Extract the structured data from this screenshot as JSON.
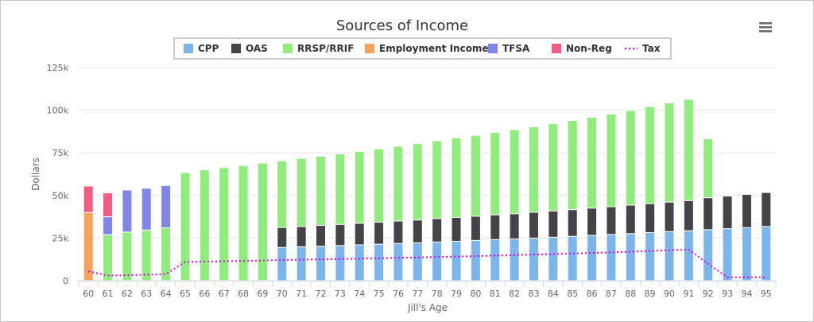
{
  "menu_icon": "hamburger-menu-icon",
  "chart_data": {
    "type": "bar",
    "stacked": true,
    "title": "Sources of Income",
    "xlabel": "Jill's Age",
    "ylabel": "Dollars",
    "ylim": [
      0,
      125000
    ],
    "yticks": [
      0,
      25000,
      50000,
      75000,
      100000,
      125000
    ],
    "ytick_labels": [
      "0",
      "25k",
      "50k",
      "75k",
      "100k",
      "125k"
    ],
    "grid": true,
    "legend_position": "top-center",
    "categories": [
      "60",
      "61",
      "62",
      "63",
      "64",
      "65",
      "66",
      "67",
      "68",
      "69",
      "70",
      "71",
      "72",
      "73",
      "74",
      "75",
      "76",
      "77",
      "78",
      "79",
      "80",
      "81",
      "82",
      "83",
      "84",
      "85",
      "86",
      "87",
      "88",
      "89",
      "90",
      "91",
      "92",
      "93",
      "94",
      "95"
    ],
    "series": [
      {
        "name": "CPP",
        "type": "bar",
        "color": "#7cb5ec",
        "values": [
          0,
          0,
          0,
          0,
          0,
          0,
          0,
          0,
          0,
          0,
          19500,
          19900,
          20200,
          20600,
          21000,
          21400,
          21800,
          22200,
          22700,
          23100,
          23600,
          24100,
          24500,
          25000,
          25500,
          26000,
          26600,
          27100,
          27600,
          28200,
          28800,
          29300,
          29900,
          30500,
          31100,
          31800
        ]
      },
      {
        "name": "OAS",
        "type": "bar",
        "color": "#434348",
        "values": [
          0,
          0,
          0,
          0,
          0,
          0,
          0,
          0,
          0,
          0,
          11700,
          11900,
          12200,
          12400,
          12700,
          12900,
          13200,
          13400,
          13700,
          14000,
          14200,
          14500,
          14800,
          15100,
          15400,
          15700,
          16000,
          16300,
          16700,
          17000,
          17300,
          17700,
          18800,
          19100,
          19500,
          19900
        ]
      },
      {
        "name": "RRSP/RRIF",
        "type": "bar",
        "color": "#90ed7d",
        "values": [
          0,
          27000,
          28500,
          29700,
          31000,
          63400,
          65000,
          66300,
          67600,
          69000,
          39100,
          40000,
          40600,
          41300,
          42100,
          43000,
          43800,
          44800,
          45700,
          46600,
          47400,
          48300,
          49300,
          50200,
          51200,
          52300,
          53300,
          54400,
          55500,
          56900,
          58200,
          59400,
          34500,
          0,
          0,
          0
        ]
      },
      {
        "name": "Employment Income",
        "type": "bar",
        "color": "#f7a35c",
        "values": [
          40000,
          0,
          0,
          0,
          0,
          0,
          0,
          0,
          0,
          0,
          0,
          0,
          0,
          0,
          0,
          0,
          0,
          0,
          0,
          0,
          0,
          0,
          0,
          0,
          0,
          0,
          0,
          0,
          0,
          0,
          0,
          0,
          0,
          0,
          0,
          0
        ]
      },
      {
        "name": "TFSA",
        "type": "bar",
        "color": "#8085e9",
        "values": [
          0,
          10500,
          24700,
          24500,
          24800,
          0,
          0,
          0,
          0,
          0,
          0,
          0,
          0,
          0,
          0,
          0,
          0,
          0,
          0,
          0,
          0,
          0,
          0,
          0,
          0,
          0,
          0,
          0,
          0,
          0,
          0,
          0,
          0,
          0,
          0,
          0
        ]
      },
      {
        "name": "Non-Reg",
        "type": "bar",
        "color": "#f15c80",
        "values": [
          15500,
          14000,
          0,
          0,
          0,
          0,
          0,
          0,
          0,
          0,
          0,
          0,
          0,
          0,
          0,
          0,
          0,
          0,
          0,
          0,
          0,
          0,
          0,
          0,
          0,
          0,
          0,
          0,
          0,
          0,
          0,
          0,
          0,
          0,
          0,
          0
        ]
      },
      {
        "name": "Tax",
        "type": "line",
        "color": "#e100e1",
        "dashed": true,
        "values": [
          5500,
          3000,
          3200,
          3500,
          3800,
          11000,
          11200,
          11400,
          11600,
          11800,
          12100,
          12300,
          12500,
          12700,
          12900,
          13100,
          13400,
          13600,
          13900,
          14100,
          14400,
          14700,
          15000,
          15300,
          15600,
          15900,
          16300,
          16600,
          17000,
          17400,
          17900,
          18200,
          10000,
          2000,
          2000,
          2000
        ]
      }
    ]
  }
}
